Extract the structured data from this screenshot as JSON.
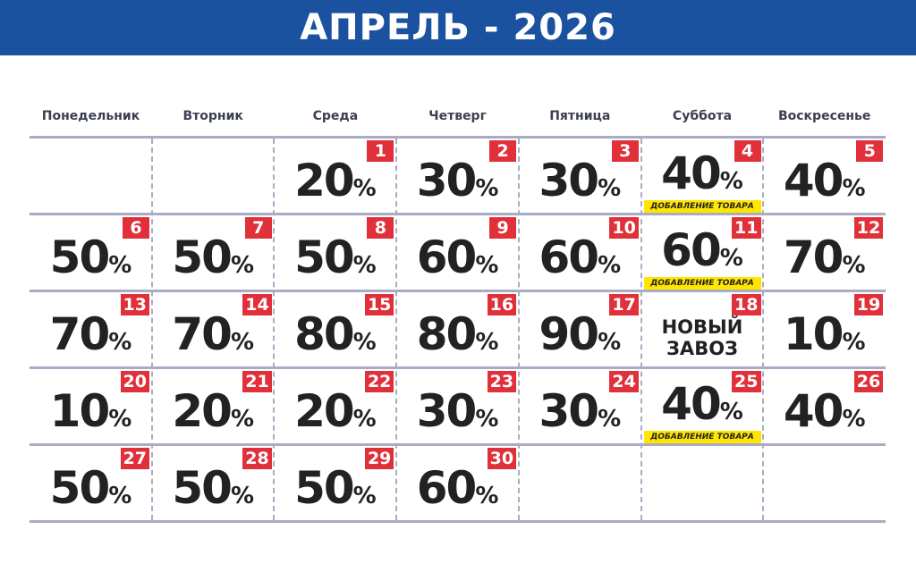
{
  "title": "АПРЕЛЬ - 2026",
  "weekdays": [
    "Понедельник",
    "Вторник",
    "Среда",
    "Четверг",
    "Пятница",
    "Суббота",
    "Воскресенье"
  ],
  "colors": {
    "header": "#1b52a0",
    "badge": "#e0303a",
    "tag": "#ffe600",
    "grid": "#a9adc4"
  },
  "percent_sign": "%",
  "weeks": [
    [
      null,
      null,
      {
        "day": "1",
        "discount": "20"
      },
      {
        "day": "2",
        "discount": "30"
      },
      {
        "day": "3",
        "discount": "30"
      },
      {
        "day": "4",
        "discount": "40",
        "tag": "ДОБАВЛЕНИЕ ТОВАРА"
      },
      {
        "day": "5",
        "discount": "40"
      }
    ],
    [
      {
        "day": "6",
        "discount": "50"
      },
      {
        "day": "7",
        "discount": "50"
      },
      {
        "day": "8",
        "discount": "50"
      },
      {
        "day": "9",
        "discount": "60"
      },
      {
        "day": "10",
        "discount": "60"
      },
      {
        "day": "11",
        "discount": "60",
        "tag": "ДОБАВЛЕНИЕ ТОВАРА"
      },
      {
        "day": "12",
        "discount": "70"
      }
    ],
    [
      {
        "day": "13",
        "discount": "70"
      },
      {
        "day": "14",
        "discount": "70"
      },
      {
        "day": "15",
        "discount": "80"
      },
      {
        "day": "16",
        "discount": "80"
      },
      {
        "day": "17",
        "discount": "90"
      },
      {
        "day": "18",
        "note": [
          "НОВЫЙ",
          "ЗАВОЗ"
        ]
      },
      {
        "day": "19",
        "discount": "10"
      }
    ],
    [
      {
        "day": "20",
        "discount": "10"
      },
      {
        "day": "21",
        "discount": "20"
      },
      {
        "day": "22",
        "discount": "20"
      },
      {
        "day": "23",
        "discount": "30"
      },
      {
        "day": "24",
        "discount": "30"
      },
      {
        "day": "25",
        "discount": "40",
        "tag": "ДОБАВЛЕНИЕ ТОВАРА"
      },
      {
        "day": "26",
        "discount": "40"
      }
    ],
    [
      {
        "day": "27",
        "discount": "50"
      },
      {
        "day": "28",
        "discount": "50"
      },
      {
        "day": "29",
        "discount": "50"
      },
      {
        "day": "30",
        "discount": "60"
      },
      null,
      null,
      null
    ]
  ]
}
